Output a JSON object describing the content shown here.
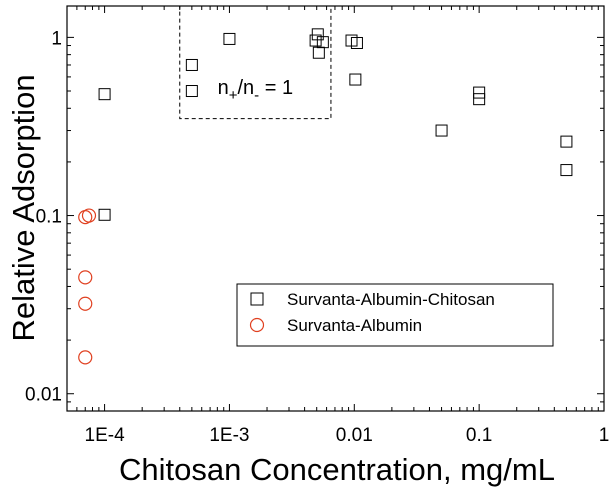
{
  "chart_data": {
    "type": "scatter",
    "title": "",
    "xlabel": "Chitosan Concentration, mg/mL",
    "ylabel": "Relative Adsorption",
    "x_scale": "log",
    "y_scale": "log",
    "xlim": [
      5e-05,
      1
    ],
    "ylim": [
      0.008,
      1.5
    ],
    "x_ticks": [
      {
        "value": 0.0001,
        "label": "1E-4"
      },
      {
        "value": 0.001,
        "label": "1E-3"
      },
      {
        "value": 0.01,
        "label": "0.01"
      },
      {
        "value": 0.1,
        "label": "0.1"
      },
      {
        "value": 1,
        "label": "1"
      }
    ],
    "y_ticks": [
      {
        "value": 0.01,
        "label": "0.01"
      },
      {
        "value": 0.1,
        "label": "0.1"
      },
      {
        "value": 1,
        "label": "1"
      }
    ],
    "grid": false,
    "legend_position": "lower-right",
    "series": [
      {
        "name": "Survanta-Albumin-Chitosan",
        "marker": "square",
        "color": "#000000",
        "points": [
          {
            "x": 0.0001,
            "y": 0.48
          },
          {
            "x": 0.0001,
            "y": 0.101
          },
          {
            "x": 0.0005,
            "y": 0.7
          },
          {
            "x": 0.0005,
            "y": 0.5
          },
          {
            "x": 0.001,
            "y": 0.98
          },
          {
            "x": 0.0049,
            "y": 0.96
          },
          {
            "x": 0.0051,
            "y": 1.04
          },
          {
            "x": 0.0052,
            "y": 0.82
          },
          {
            "x": 0.0056,
            "y": 0.94
          },
          {
            "x": 0.0095,
            "y": 0.96
          },
          {
            "x": 0.0105,
            "y": 0.93
          },
          {
            "x": 0.0102,
            "y": 0.58
          },
          {
            "x": 0.05,
            "y": 0.3
          },
          {
            "x": 0.1,
            "y": 0.49
          },
          {
            "x": 0.1,
            "y": 0.45
          },
          {
            "x": 0.5,
            "y": 0.26
          },
          {
            "x": 0.5,
            "y": 0.18
          }
        ]
      },
      {
        "name": "Survanta-Albumin",
        "marker": "circle",
        "color": "#e04020",
        "points": [
          {
            "x": 7e-05,
            "y": 0.098
          },
          {
            "x": 7.5e-05,
            "y": 0.1
          },
          {
            "x": 7e-05,
            "y": 0.045
          },
          {
            "x": 7e-05,
            "y": 0.032
          },
          {
            "x": 7e-05,
            "y": 0.016
          }
        ]
      }
    ],
    "annotation": {
      "label_main": "n",
      "label_sub1": "+",
      "label_mid": "/n",
      "label_sub2": "-",
      "label_end": " = 1",
      "box_x_range": [
        0.0004,
        0.0065
      ],
      "box_y_range": [
        0.35,
        1.5
      ],
      "box_style": "dashed"
    }
  }
}
